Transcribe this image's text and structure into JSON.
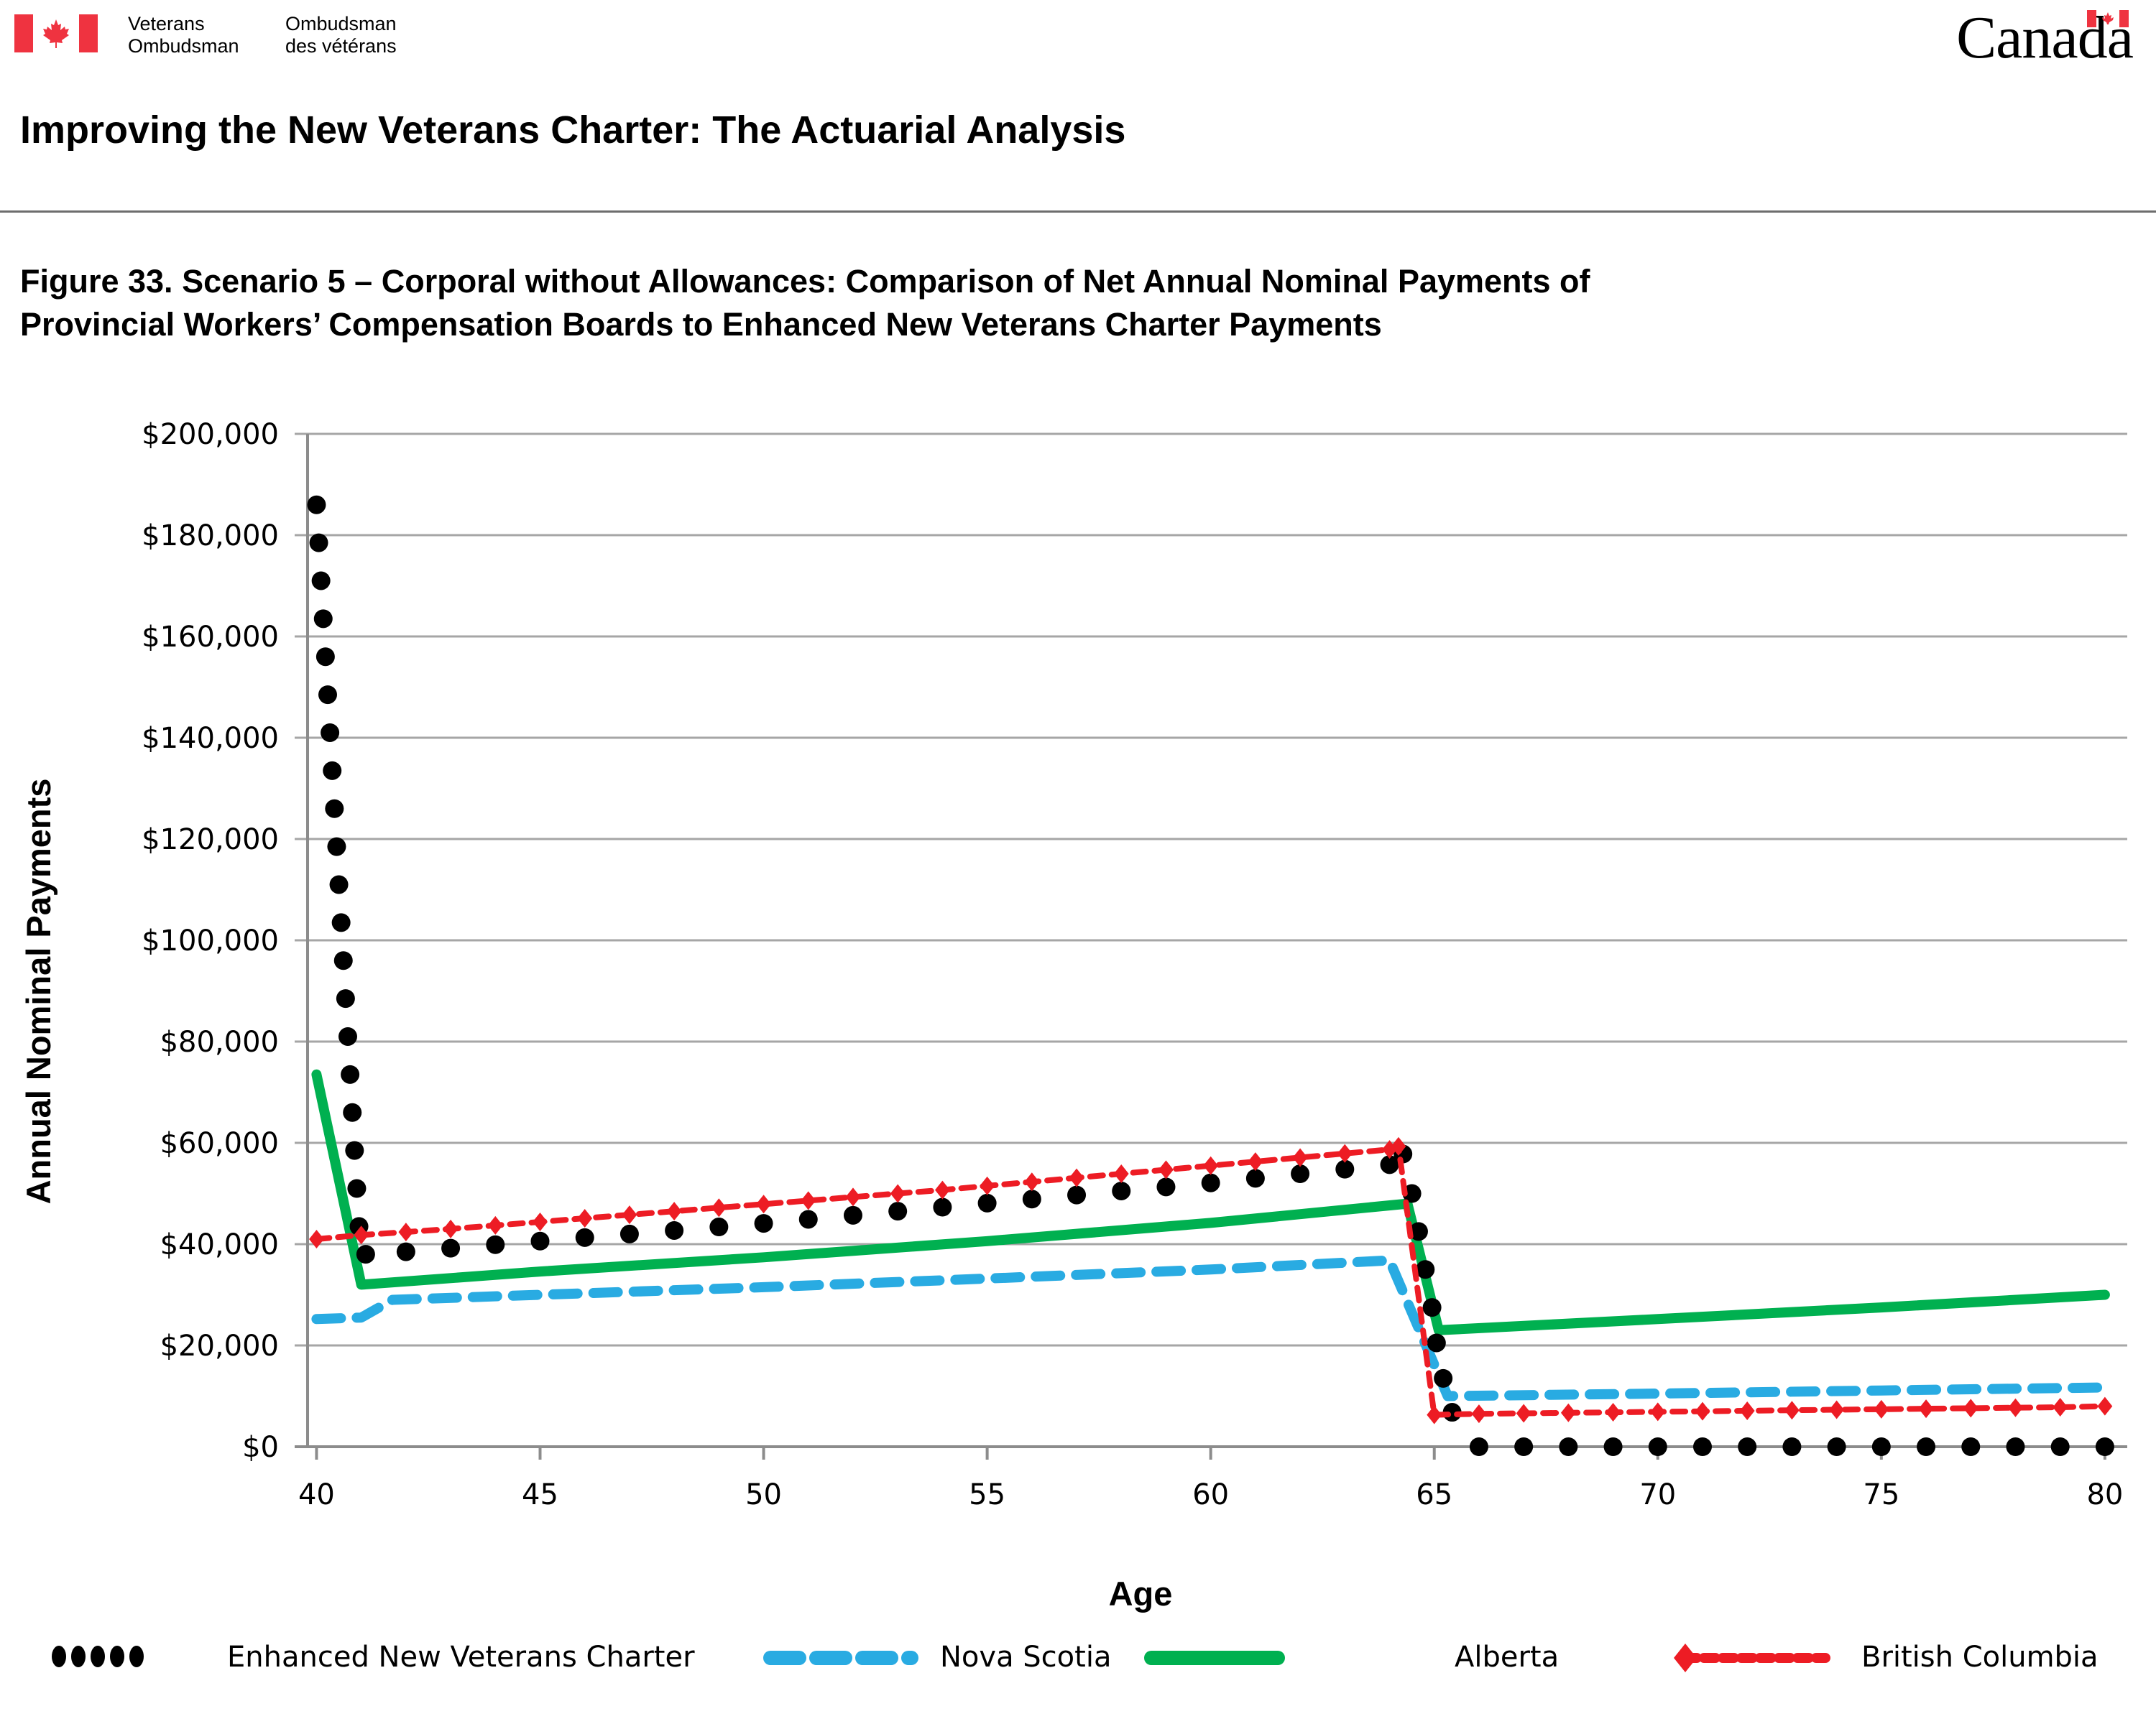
{
  "header": {
    "org_name_en_line1": "Veterans",
    "org_name_en_line2": "Ombudsman",
    "org_name_fr_line1": "Ombudsman",
    "org_name_fr_line2": "des vétérans",
    "wordmark": "Canada",
    "flag_icon": "canada-flag-icon"
  },
  "document": {
    "title": "Improving the New Veterans Charter: The Actuarial Analysis",
    "figure_title_line1": "Figure 33. Scenario 5 – Corporal without Allowances: Comparison of Net Annual Nominal Payments of",
    "figure_title_line2": "Provincial Workers’ Compensation Boards to Enhanced New Veterans Charter Payments"
  },
  "colors": {
    "flag_red": "#ef3340",
    "nova_scotia": "#29abe2",
    "alberta": "#00b050",
    "british_columbia": "#ed1c24",
    "enhanced_nvc": "#000000",
    "grid": "#a6a6a6",
    "axis": "#8c8c8c"
  },
  "chart_data": {
    "type": "line",
    "title": "Figure 33. Scenario 5 – Corporal without Allowances: Comparison of Net Annual Nominal Payments of Provincial Workers’ Compensation Boards to Enhanced New Veterans Charter Payments",
    "xlabel": "Age",
    "ylabel": "Annual Nominal Payments",
    "xlim": [
      39.8,
      80.5
    ],
    "ylim": [
      0,
      200000
    ],
    "x_ticks": [
      40,
      45,
      50,
      55,
      60,
      65,
      70,
      75,
      80
    ],
    "y_ticks": [
      0,
      20000,
      40000,
      60000,
      80000,
      100000,
      120000,
      140000,
      160000,
      180000,
      200000
    ],
    "y_tick_labels": [
      "$0",
      "$20,000",
      "$40,000",
      "$60,000",
      "$80,000",
      "$100,000",
      "$120,000",
      "$140,000",
      "$160,000",
      "$180,000",
      "$200,000"
    ],
    "grid": true,
    "legend_position": "bottom",
    "series": [
      {
        "name": "Enhanced New Veterans Charter",
        "style": "dots",
        "points": [
          [
            40.0,
            186000
          ],
          [
            40.05,
            178500
          ],
          [
            40.1,
            171000
          ],
          [
            40.15,
            163500
          ],
          [
            40.2,
            156000
          ],
          [
            40.25,
            148500
          ],
          [
            40.3,
            141000
          ],
          [
            40.35,
            133500
          ],
          [
            40.4,
            126000
          ],
          [
            40.45,
            118500
          ],
          [
            40.5,
            111000
          ],
          [
            40.55,
            103500
          ],
          [
            40.6,
            96000
          ],
          [
            40.65,
            88500
          ],
          [
            40.7,
            81000
          ],
          [
            40.75,
            73500
          ],
          [
            40.8,
            66000
          ],
          [
            40.85,
            58500
          ],
          [
            40.9,
            51000
          ],
          [
            40.95,
            43500
          ],
          [
            41.1,
            38000
          ],
          [
            42,
            38500
          ],
          [
            43,
            39200
          ],
          [
            44,
            39900
          ],
          [
            45,
            40600
          ],
          [
            46,
            41300
          ],
          [
            47,
            42000
          ],
          [
            48,
            42700
          ],
          [
            49,
            43400
          ],
          [
            50,
            44100
          ],
          [
            51,
            44900
          ],
          [
            52,
            45700
          ],
          [
            53,
            46500
          ],
          [
            54,
            47300
          ],
          [
            55,
            48100
          ],
          [
            56,
            48900
          ],
          [
            57,
            49700
          ],
          [
            58,
            50500
          ],
          [
            59,
            51300
          ],
          [
            60,
            52100
          ],
          [
            61,
            53000
          ],
          [
            62,
            53900
          ],
          [
            63,
            54800
          ],
          [
            64,
            55700
          ],
          [
            64.3,
            57800
          ],
          [
            64.5,
            50000
          ],
          [
            64.65,
            42500
          ],
          [
            64.8,
            35000
          ],
          [
            64.95,
            27500
          ],
          [
            65.05,
            20500
          ],
          [
            65.2,
            13500
          ],
          [
            65.4,
            6800
          ],
          [
            66,
            0
          ],
          [
            67,
            0
          ],
          [
            68,
            0
          ],
          [
            69,
            0
          ],
          [
            70,
            0
          ],
          [
            71,
            0
          ],
          [
            72,
            0
          ],
          [
            73,
            0
          ],
          [
            74,
            0
          ],
          [
            75,
            0
          ],
          [
            76,
            0
          ],
          [
            77,
            0
          ],
          [
            78,
            0
          ],
          [
            79,
            0
          ],
          [
            80,
            0
          ]
        ]
      },
      {
        "name": "Nova Scotia",
        "style": "dashed",
        "points": [
          [
            40,
            25200
          ],
          [
            41,
            25500
          ],
          [
            41.7,
            29000
          ],
          [
            45,
            30000
          ],
          [
            50,
            31500
          ],
          [
            55,
            33200
          ],
          [
            60,
            35000
          ],
          [
            64,
            36800
          ],
          [
            65.3,
            10000
          ],
          [
            70,
            10500
          ],
          [
            75,
            11100
          ],
          [
            80,
            11700
          ]
        ]
      },
      {
        "name": "Alberta",
        "style": "solid",
        "points": [
          [
            40,
            73500
          ],
          [
            41,
            32000
          ],
          [
            45,
            34600
          ],
          [
            50,
            37400
          ],
          [
            55,
            40600
          ],
          [
            60,
            44200
          ],
          [
            64.4,
            48000
          ],
          [
            65.1,
            23000
          ],
          [
            70,
            25200
          ],
          [
            75,
            27500
          ],
          [
            80,
            30000
          ]
        ]
      },
      {
        "name": "British Columbia",
        "style": "dashed-diamond",
        "points": [
          [
            40,
            41000
          ],
          [
            41,
            41800
          ],
          [
            42,
            42400
          ],
          [
            43,
            43000
          ],
          [
            44,
            43700
          ],
          [
            45,
            44400
          ],
          [
            46,
            45100
          ],
          [
            47,
            45800
          ],
          [
            48,
            46500
          ],
          [
            49,
            47200
          ],
          [
            50,
            47900
          ],
          [
            51,
            48600
          ],
          [
            52,
            49300
          ],
          [
            53,
            50000
          ],
          [
            54,
            50700
          ],
          [
            55,
            51500
          ],
          [
            56,
            52300
          ],
          [
            57,
            53100
          ],
          [
            58,
            53900
          ],
          [
            59,
            54700
          ],
          [
            60,
            55500
          ],
          [
            61,
            56300
          ],
          [
            62,
            57100
          ],
          [
            63,
            57900
          ],
          [
            64,
            58700
          ],
          [
            64.2,
            59300
          ],
          [
            65,
            6300
          ],
          [
            66,
            6500
          ],
          [
            67,
            6600
          ],
          [
            68,
            6700
          ],
          [
            69,
            6800
          ],
          [
            70,
            6900
          ],
          [
            71,
            7000
          ],
          [
            72,
            7100
          ],
          [
            73,
            7200
          ],
          [
            74,
            7300
          ],
          [
            75,
            7400
          ],
          [
            76,
            7500
          ],
          [
            77,
            7600
          ],
          [
            78,
            7700
          ],
          [
            79,
            7800
          ],
          [
            80,
            8000
          ]
        ]
      }
    ]
  }
}
